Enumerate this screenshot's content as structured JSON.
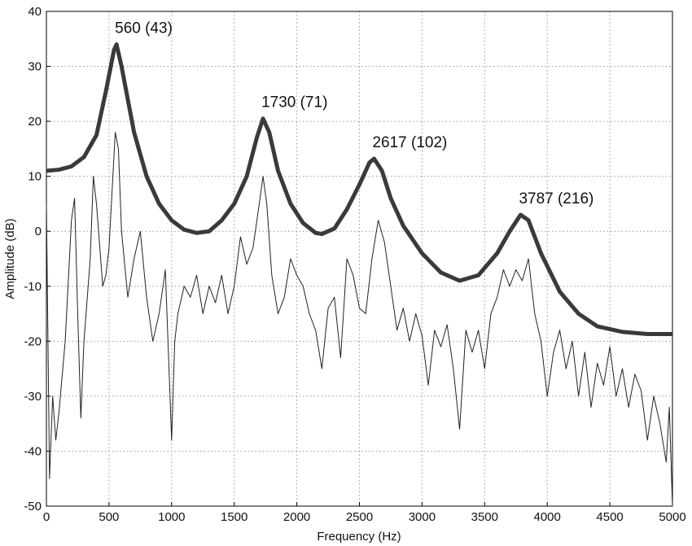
{
  "chart_data": {
    "type": "line",
    "x_label": "Frequency (Hz)",
    "y_label": "Amplitude (dB)",
    "xlim": [
      0,
      5000
    ],
    "xticks": [
      0,
      500,
      1000,
      1500,
      2000,
      2500,
      3000,
      3500,
      4000,
      4500,
      5000
    ],
    "ylim": [
      -50,
      40
    ],
    "yticks": [
      -50,
      -40,
      -30,
      -20,
      -10,
      0,
      10,
      20,
      30,
      40
    ],
    "grid": true,
    "annotations": [
      "560 (43)",
      "1730 (71)",
      "2617 (102)",
      "3787 (216)"
    ],
    "series": [
      {
        "color": "#222222",
        "x": [
          0,
          25,
          50,
          75,
          100,
          150,
          200,
          225,
          250,
          275,
          300,
          350,
          375,
          400,
          450,
          475,
          500,
          550,
          575,
          600,
          650,
          700,
          750,
          800,
          850,
          900,
          950,
          1000,
          1025,
          1050,
          1100,
          1150,
          1200,
          1250,
          1300,
          1350,
          1400,
          1450,
          1500,
          1550,
          1600,
          1650,
          1700,
          1730,
          1760,
          1800,
          1850,
          1900,
          1950,
          2000,
          2050,
          2100,
          2150,
          2200,
          2250,
          2300,
          2350,
          2400,
          2450,
          2500,
          2550,
          2600,
          2650,
          2700,
          2750,
          2800,
          2850,
          2900,
          2950,
          3000,
          3050,
          3100,
          3150,
          3200,
          3250,
          3300,
          3350,
          3400,
          3450,
          3500,
          3550,
          3600,
          3650,
          3700,
          3750,
          3800,
          3850,
          3900,
          3950,
          4000,
          4050,
          4100,
          4150,
          4200,
          4250,
          4300,
          4350,
          4400,
          4450,
          4500,
          4550,
          4600,
          4650,
          4700,
          4750,
          4800,
          4850,
          4900,
          4950,
          4975,
          5000
        ],
        "values": [
          5,
          -45,
          -30,
          -38,
          -33,
          -20,
          2,
          6,
          -15,
          -34,
          -20,
          -5,
          10,
          5,
          -10,
          -8,
          -3,
          18,
          15,
          0,
          -12,
          -5,
          0,
          -12,
          -20,
          -15,
          -7,
          -38,
          -20,
          -15,
          -10,
          -12,
          -8,
          -15,
          -10,
          -13,
          -8,
          -15,
          -10,
          -1,
          -6,
          -3,
          5,
          10,
          5,
          -8,
          -15,
          -12,
          -5,
          -8,
          -10,
          -15,
          -18,
          -25,
          -14,
          -12,
          -23,
          -5,
          -8,
          -14,
          -15,
          -5,
          2,
          -2,
          -10,
          -18,
          -14,
          -20,
          -15,
          -19,
          -28,
          -18,
          -21,
          -17,
          -25,
          -36,
          -18,
          -22,
          -18,
          -25,
          -15,
          -12,
          -7,
          -10,
          -7,
          -9,
          -5,
          -15,
          -20,
          -30,
          -22,
          -18,
          -25,
          -20,
          -30,
          -22,
          -32,
          -24,
          -28,
          -21,
          -30,
          -25,
          -32,
          -26,
          -29,
          -38,
          -30,
          -35,
          -42,
          -32,
          -50
        ]
      },
      {
        "color": "#3a3a3a",
        "x": [
          0,
          100,
          200,
          300,
          400,
          480,
          540,
          560,
          600,
          700,
          800,
          900,
          1000,
          1100,
          1200,
          1300,
          1400,
          1500,
          1600,
          1680,
          1730,
          1780,
          1850,
          1950,
          2050,
          2150,
          2200,
          2300,
          2400,
          2500,
          2580,
          2617,
          2680,
          2750,
          2850,
          3000,
          3150,
          3300,
          3450,
          3600,
          3700,
          3787,
          3850,
          3950,
          4100,
          4250,
          4400,
          4600,
          4800,
          5000
        ],
        "values": [
          11,
          11.2,
          11.8,
          13.5,
          17.5,
          26,
          33,
          34,
          30,
          18,
          10,
          5,
          2,
          0.3,
          -0.3,
          0,
          2,
          5,
          10,
          17,
          20.5,
          18,
          11,
          5,
          1.5,
          -0.3,
          -0.5,
          0.5,
          4,
          8.5,
          12.5,
          13.2,
          11,
          6,
          1,
          -4,
          -7.5,
          -9,
          -8,
          -4,
          0,
          3,
          2,
          -4,
          -11,
          -15,
          -17.3,
          -18.3,
          -18.7,
          -18.7
        ]
      }
    ]
  }
}
